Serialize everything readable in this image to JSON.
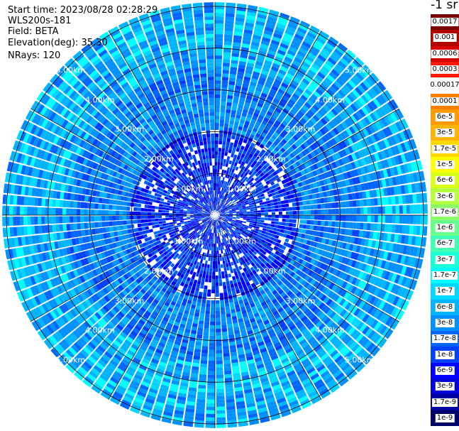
{
  "header": {
    "start_time": "Start time: 2023/08/28 02:28:29",
    "instrument": "WLS200s-181",
    "field": "Field: BETA",
    "elevation": "Elevation(deg): 35.30",
    "nrays": "NRays: 120"
  },
  "colorbar": {
    "title": "-1 sr",
    "segments": [
      {
        "label": "0.0017",
        "color": "#7a0000"
      },
      {
        "label": "0.001",
        "color": "#b20000"
      },
      {
        "label": "0.0006",
        "color": "#d80000"
      },
      {
        "label": "0.0003",
        "color": "#ff1a00"
      },
      {
        "label": "0.00017",
        "color": "#ffffff"
      },
      {
        "label": "0.0001",
        "color": "#ff7f00"
      },
      {
        "label": "6e-5",
        "color": "#ff9a00"
      },
      {
        "label": "3e-5",
        "color": "#ffb400"
      },
      {
        "label": "1.7e-5",
        "color": "#ffd800"
      },
      {
        "label": "1e-5",
        "color": "#ffff00"
      },
      {
        "label": "6e-6",
        "color": "#d8ff1a"
      },
      {
        "label": "3e-6",
        "color": "#b4ff40"
      },
      {
        "label": "1.7e-6",
        "color": "#8cff66"
      },
      {
        "label": "1e-6",
        "color": "#66ff8c"
      },
      {
        "label": "6e-7",
        "color": "#40ffb4"
      },
      {
        "label": "3e-7",
        "color": "#1affd8"
      },
      {
        "label": "1.7e-7",
        "color": "#00ffff"
      },
      {
        "label": "1e-7",
        "color": "#00d8ff"
      },
      {
        "label": "6e-8",
        "color": "#00b4ff"
      },
      {
        "label": "3e-8",
        "color": "#0090ff"
      },
      {
        "label": "1.7e-8",
        "color": "#0066ff"
      },
      {
        "label": "1e-8",
        "color": "#0040ff"
      },
      {
        "label": "6e-9",
        "color": "#0000ff"
      },
      {
        "label": "3e-9",
        "color": "#0000d8"
      },
      {
        "label": "1.7e-9",
        "color": "#0000a0"
      },
      {
        "label": "1e-9",
        "color": "#00006a"
      }
    ]
  },
  "rings": {
    "range_km": [
      1,
      2,
      3,
      4,
      5
    ],
    "labels": [
      "1.00km",
      "2.00km",
      "3.00km",
      "4.00km",
      "5.00km"
    ]
  },
  "plot": {
    "max_range_km": 5.1,
    "near_color": "#1030ff",
    "mid_color": "#1a70ee",
    "far_color": "#18a0ff",
    "accent_color": "#00d0ff"
  }
}
